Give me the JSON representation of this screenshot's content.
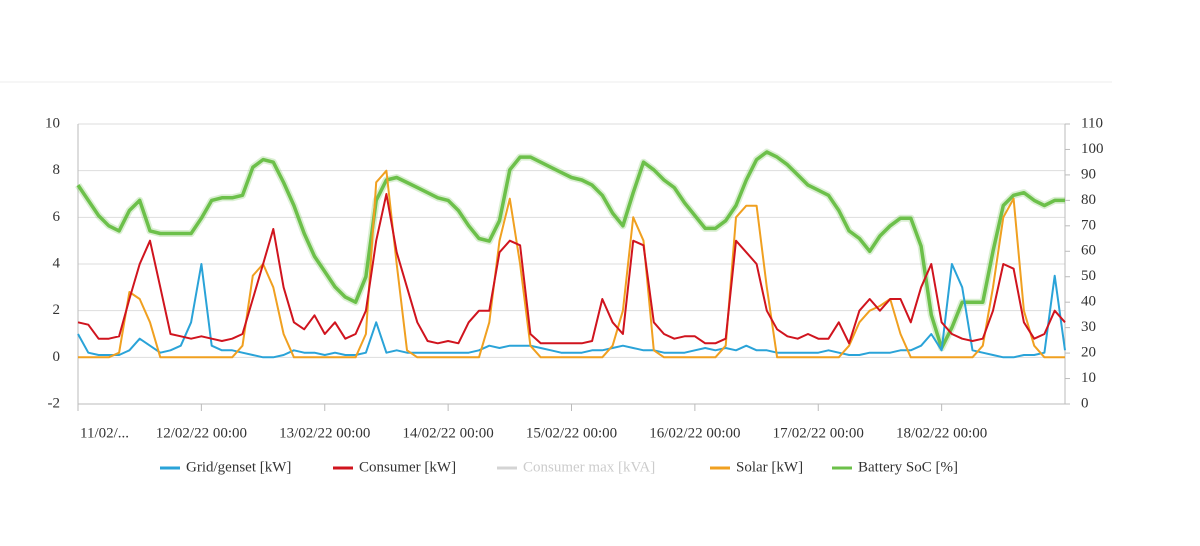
{
  "chart_data": {
    "type": "line",
    "categories": [
      "11/02/...",
      null,
      null,
      null,
      null,
      null,
      null,
      null,
      null,
      null,
      null,
      null,
      "12/02/22 00:00",
      null,
      null,
      null,
      null,
      null,
      null,
      null,
      null,
      null,
      null,
      null,
      "13/02/22 00:00",
      null,
      null,
      null,
      null,
      null,
      null,
      null,
      null,
      null,
      null,
      null,
      "14/02/22 00:00",
      null,
      null,
      null,
      null,
      null,
      null,
      null,
      null,
      null,
      null,
      null,
      "15/02/22 00:00",
      null,
      null,
      null,
      null,
      null,
      null,
      null,
      null,
      null,
      null,
      null,
      "16/02/22 00:00",
      null,
      null,
      null,
      null,
      null,
      null,
      null,
      null,
      null,
      null,
      null,
      "17/02/22 00:00",
      null,
      null,
      null,
      null,
      null,
      null,
      null,
      null,
      null,
      null,
      null,
      "18/02/22 00:00",
      null,
      null,
      null,
      null,
      null,
      null,
      null,
      null,
      null,
      null,
      null,
      null
    ],
    "ylim": [
      -2,
      10
    ],
    "yticks": [
      -2,
      0,
      2,
      4,
      6,
      8,
      10
    ],
    "y2lim": [
      0,
      110
    ],
    "y2ticks": [
      0,
      10,
      20,
      30,
      40,
      50,
      60,
      70,
      80,
      90,
      100,
      110
    ],
    "grid": true,
    "legend": "bottom",
    "series": [
      {
        "name": "Grid/genset [kW]",
        "color": "#2aa3d8",
        "values": [
          1,
          0.2,
          0.1,
          0.1,
          0.1,
          0.3,
          0.8,
          0.5,
          0.2,
          0.3,
          0.5,
          1.5,
          4,
          0.5,
          0.3,
          0.3,
          0.2,
          0.1,
          0,
          0,
          0.1,
          0.3,
          0.2,
          0.2,
          0.1,
          0.2,
          0.1,
          0.1,
          0.2,
          1.5,
          0.2,
          0.3,
          0.2,
          0.2,
          0.2,
          0.2,
          0.2,
          0.2,
          0.2,
          0.3,
          0.5,
          0.4,
          0.5,
          0.5,
          0.5,
          0.4,
          0.3,
          0.2,
          0.2,
          0.2,
          0.3,
          0.3,
          0.4,
          0.5,
          0.4,
          0.3,
          0.3,
          0.2,
          0.2,
          0.2,
          0.3,
          0.4,
          0.3,
          0.4,
          0.3,
          0.5,
          0.3,
          0.3,
          0.2,
          0.2,
          0.2,
          0.2,
          0.2,
          0.3,
          0.2,
          0.1,
          0.1,
          0.2,
          0.2,
          0.2,
          0.3,
          0.3,
          0.5,
          1,
          0.3,
          4,
          3,
          0.3,
          0.2,
          0.1,
          0,
          0,
          0.1,
          0.1,
          0.2,
          3.5,
          0.3
        ]
      },
      {
        "name": "Consumer [kW]",
        "color": "#d0141e",
        "values": [
          1.5,
          1.4,
          0.8,
          0.8,
          0.9,
          2.5,
          4,
          5,
          3,
          1,
          0.9,
          0.8,
          0.9,
          0.8,
          0.7,
          0.8,
          1,
          2.5,
          4,
          5.5,
          3,
          1.5,
          1.2,
          1.8,
          1,
          1.5,
          0.8,
          1,
          2,
          5,
          7,
          4.5,
          3,
          1.5,
          0.7,
          0.6,
          0.7,
          0.6,
          1.5,
          2,
          2,
          4.5,
          5,
          4.8,
          1,
          0.6,
          0.6,
          0.6,
          0.6,
          0.6,
          0.7,
          2.5,
          1.5,
          1,
          5,
          4.8,
          1.5,
          1,
          0.8,
          0.9,
          0.9,
          0.6,
          0.6,
          0.8,
          5,
          4.5,
          4,
          2,
          1.2,
          0.9,
          0.8,
          1,
          0.8,
          0.8,
          1.5,
          0.6,
          2,
          2.5,
          2,
          2.5,
          2.5,
          1.5,
          3,
          4,
          1.5,
          1,
          0.8,
          0.7,
          0.8,
          2,
          4,
          3.8,
          1.5,
          0.8,
          1,
          2,
          1.5
        ]
      },
      {
        "name": "Consumer max [kVA]",
        "color": "#d4d4d4",
        "visible": false
      },
      {
        "name": "Solar [kW]",
        "color": "#f0a020",
        "values": [
          0,
          0,
          0,
          0,
          0.2,
          2.8,
          2.5,
          1.5,
          0,
          0,
          0,
          0,
          0,
          0,
          0,
          0,
          0.5,
          3.5,
          4,
          3,
          1,
          0,
          0,
          0,
          0,
          0,
          0,
          0,
          1,
          7.5,
          8,
          4,
          0.3,
          0,
          0,
          0,
          0,
          0,
          0,
          0,
          1.5,
          5,
          6.8,
          4,
          0.5,
          0,
          0,
          0,
          0,
          0,
          0,
          0,
          0.5,
          2,
          6,
          5,
          0.3,
          0,
          0,
          0,
          0,
          0,
          0,
          0.5,
          6,
          6.5,
          6.5,
          3,
          0,
          0,
          0,
          0,
          0,
          0,
          0,
          0.5,
          1.5,
          2,
          2.2,
          2.5,
          1,
          0,
          0,
          0,
          0,
          0,
          0,
          0,
          0.5,
          3,
          6,
          6.8,
          2,
          0.5,
          0,
          0,
          0
        ]
      },
      {
        "name": "Battery SoC [%]",
        "color": "#6cc04a",
        "axis": "y2",
        "values": [
          86,
          80,
          74,
          70,
          68,
          76,
          80,
          68,
          67,
          67,
          67,
          67,
          73,
          80,
          81,
          81,
          82,
          93,
          96,
          95,
          87,
          78,
          67,
          58,
          52,
          46,
          42,
          40,
          50,
          80,
          88,
          89,
          87,
          85,
          83,
          81,
          80,
          76,
          70,
          65,
          64,
          72,
          92,
          97,
          97,
          95,
          93,
          91,
          89,
          88,
          86,
          82,
          75,
          70,
          83,
          95,
          92,
          88,
          85,
          79,
          74,
          69,
          69,
          72,
          78,
          88,
          96,
          99,
          97,
          94,
          90,
          86,
          84,
          82,
          76,
          68,
          65,
          60,
          66,
          70,
          73,
          73,
          62,
          35,
          22,
          30,
          40,
          40,
          40,
          60,
          78,
          82,
          83,
          80,
          78,
          80,
          80
        ]
      }
    ]
  }
}
